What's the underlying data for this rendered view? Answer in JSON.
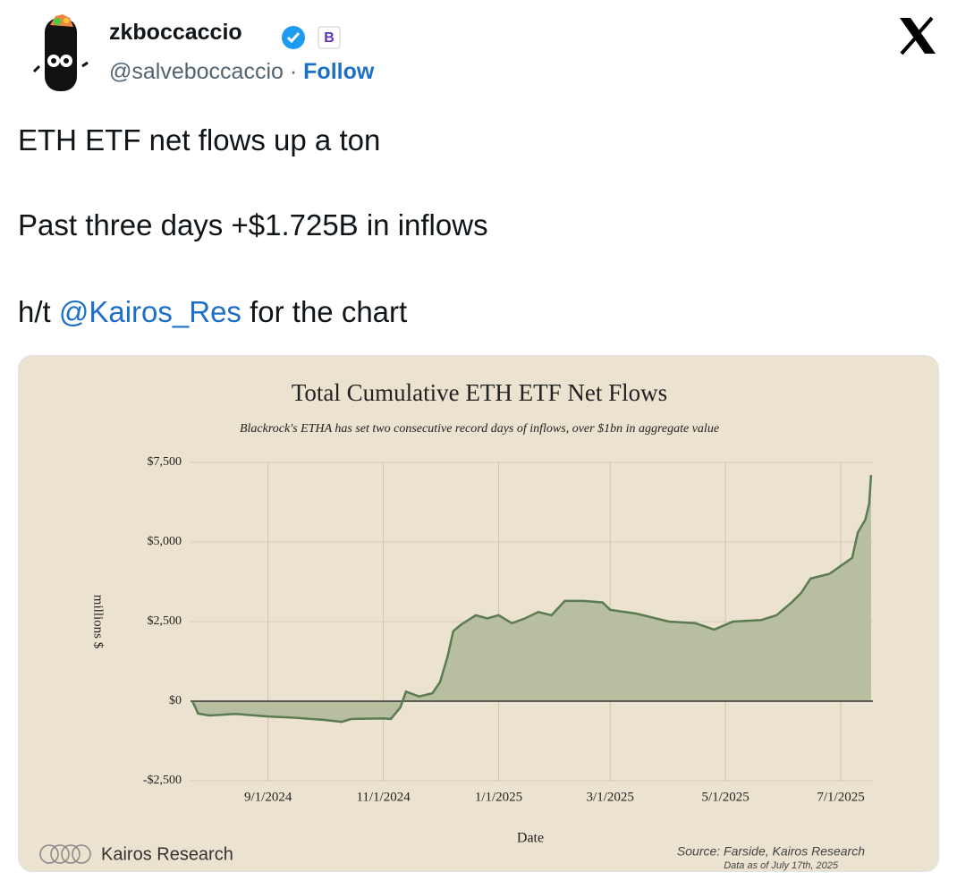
{
  "tweet": {
    "name": "zkboccaccio",
    "handle": "@salveboccaccio",
    "separator": "·",
    "follow": "Follow",
    "body": {
      "line1": "ETH ETF net flows up a ton",
      "line2": "Past three days +$1.725B in inflows",
      "line3_pre": "h/t ",
      "line3_mention": "@Kairos_Res",
      "line3_post": " for the chart"
    }
  },
  "chart_data": {
    "type": "area",
    "title": "Total Cumulative ETH ETF Net Flows",
    "subtitle": "Blackrock's ETHA has set two consecutive record days of inflows, over $1bn in aggregate value",
    "x_label": "Date",
    "y_label": "millions $",
    "brand": "Kairos Research",
    "source": "Source: Farside, Kairos Research",
    "note": "Data as of July 17th, 2025",
    "x": [
      "7/23/2024",
      "7/26/2024",
      "8/1/2024",
      "8/15/2024",
      "9/1/2024",
      "9/15/2024",
      "10/1/2024",
      "10/10/2024",
      "10/15/2024",
      "11/1/2024",
      "11/5/2024",
      "11/10/2024",
      "11/13/2024",
      "11/20/2024",
      "11/27/2024",
      "12/1/2024",
      "12/5/2024",
      "12/8/2024",
      "12/12/2024",
      "12/20/2024",
      "12/26/2024",
      "1/1/2025",
      "1/8/2025",
      "1/15/2025",
      "1/22/2025",
      "1/29/2025",
      "2/5/2025",
      "2/15/2025",
      "2/25/2025",
      "3/1/2025",
      "3/15/2025",
      "4/1/2025",
      "4/15/2025",
      "4/25/2025",
      "5/5/2025",
      "5/20/2025",
      "5/28/2025",
      "6/5/2025",
      "6/10/2025",
      "6/15/2025",
      "6/25/2025",
      "7/1/2025",
      "7/7/2025",
      "7/10/2025",
      "7/14/2025",
      "7/16/2025",
      "7/17/2025"
    ],
    "series": [
      {
        "color": "#5b7b52",
        "fill": "#b8bea0",
        "values": [
          0,
          -390,
          -450,
          -400,
          -480,
          -520,
          -590,
          -650,
          -560,
          -540,
          -560,
          -200,
          300,
          150,
          250,
          600,
          1400,
          2200,
          2400,
          2700,
          2600,
          2700,
          2450,
          2600,
          2800,
          2700,
          3150,
          3150,
          3100,
          2870,
          2750,
          2500,
          2450,
          2250,
          2500,
          2550,
          2700,
          3100,
          3400,
          3850,
          4000,
          4250,
          4500,
          5300,
          5700,
          6200,
          7100
        ]
      }
    ],
    "xlim": [
      "7/22/2024",
      "7/18/2025"
    ],
    "xticks": [
      "9/1/2024",
      "11/1/2024",
      "1/1/2025",
      "3/1/2025",
      "5/1/2025",
      "7/1/2025"
    ],
    "ylim": [
      -2500,
      7500
    ],
    "yticks": [
      {
        "value": -2500,
        "label": "-$2,500"
      },
      {
        "value": 0,
        "label": "$0"
      },
      {
        "value": 2500,
        "label": "$2,500"
      },
      {
        "value": 5000,
        "label": "$5,000"
      },
      {
        "value": 7500,
        "label": "$7,500"
      }
    ],
    "grid": true
  }
}
